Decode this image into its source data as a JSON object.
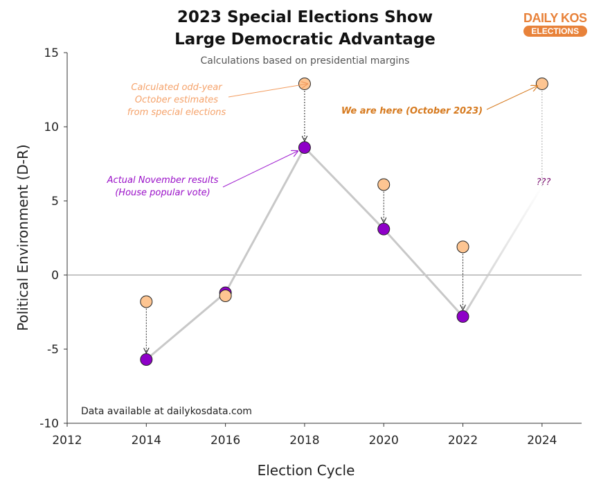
{
  "chart_data": {
    "type": "scatter",
    "title": "2023 Special Elections Show Large Democratic Advantage",
    "title_lines": [
      "2023 Special Elections Show",
      "Large Democratic Advantage"
    ],
    "subtitle": "Calculations based on presidential margins",
    "xlabel": "Election Cycle",
    "ylabel": "Political Environment (D-R)",
    "xlim": [
      2012,
      2025
    ],
    "ylim": [
      -10,
      15
    ],
    "x_ticks": [
      2012,
      2014,
      2016,
      2018,
      2020,
      2022,
      2024
    ],
    "y_ticks": [
      -10,
      -5,
      0,
      5,
      10,
      15
    ],
    "grid": false,
    "series": [
      {
        "key": "estimates",
        "x": [
          2014,
          2016,
          2018,
          2020,
          2022,
          2024
        ],
        "y": [
          -1.8,
          -1.4,
          12.9,
          6.1,
          1.9,
          12.9
        ],
        "color": "#fdc592"
      },
      {
        "key": "actual",
        "x": [
          2014,
          2016,
          2018,
          2020,
          2022
        ],
        "y": [
          -5.7,
          -1.2,
          8.6,
          3.1,
          -2.8
        ],
        "color": "#8e00c8"
      }
    ],
    "line_color": "#c8c8c8",
    "annotations": {
      "estimates": [
        "Calculated odd-year",
        "October estimates",
        "from special elections"
      ],
      "actual": [
        "Actual November results",
        "(House popular vote)"
      ],
      "here": "We are here (October 2023)",
      "unknown": "???",
      "source": "Data available at dailykosdata.com"
    }
  },
  "logo": {
    "line1": "DAILY KOS",
    "line2": "ELECTIONS",
    "color": "#e8823a"
  }
}
